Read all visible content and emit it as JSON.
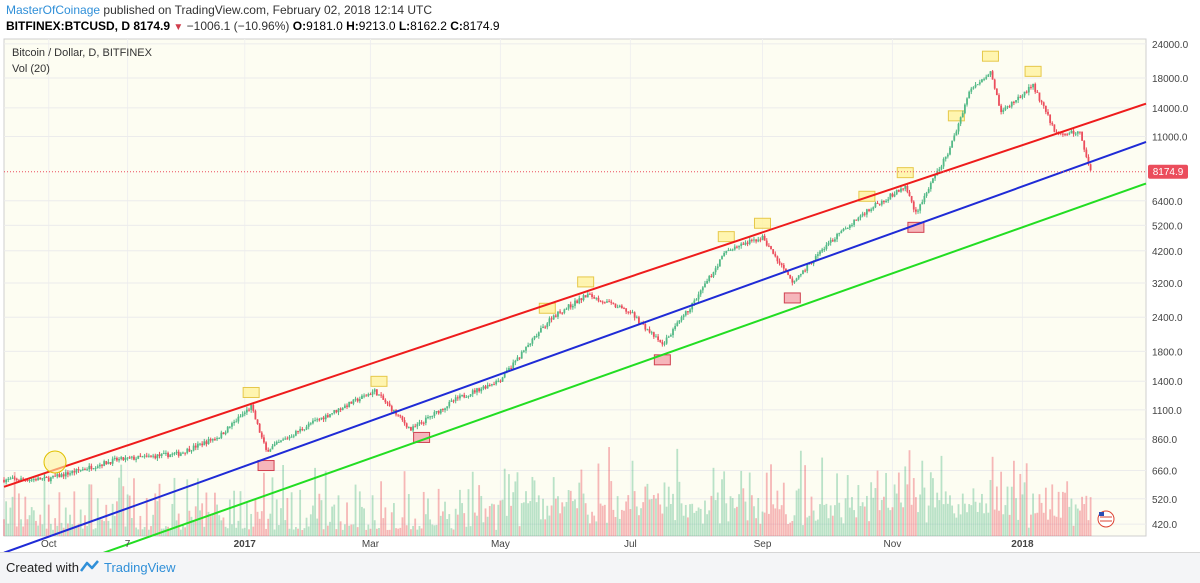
{
  "header": {
    "author": "MasterOfCoinage",
    "published_text": "published on TradingView.com, February 02, 2018 12:14 UTC",
    "symbol": "BITFINEX:BTCUSD, D",
    "last": "8174.9",
    "change": "−1006.1 (−10.96%)",
    "o_label": "O:",
    "o_value": "9181.0",
    "h_label": "H:",
    "h_value": "9213.0",
    "l_label": "L:",
    "l_value": "8162.2",
    "c_label": "C:",
    "c_value": "8174.9"
  },
  "legend": {
    "title": "Bitcoin / Dollar, D, BITFINEX",
    "volume": "Vol (20)"
  },
  "footer": {
    "created_with": "Created with",
    "brand": "TradingView"
  },
  "colors": {
    "up": "#53b987",
    "down": "#eb4d5c",
    "upper_channel": "#ee1c1c",
    "mid_channel": "#1f2bd6",
    "lower_channel": "#22dd22",
    "last_price_tag": "#eb4d5c",
    "highlight_top": "#fff29e",
    "highlight_bottom": "#f4a4ac",
    "background": "#fdfdf2"
  },
  "chart_data": {
    "type": "candlestick",
    "y_scale": "log",
    "ylim": [
      380,
      25000
    ],
    "y_ticks": [
      "420.0",
      "520.0",
      "660.0",
      "860.0",
      "1100.0",
      "1400.0",
      "1800.0",
      "2400.0",
      "3200.0",
      "4200.0",
      "5200.0",
      "6400.0",
      "8174.9",
      "11000.0",
      "14000.0",
      "18000.0",
      "24000.0"
    ],
    "x_ticks": [
      "Oct",
      "7",
      "2017",
      "Mar",
      "May",
      "Jul",
      "Sep",
      "Nov",
      "2018"
    ],
    "x_range": [
      "2016-09-10",
      "2018-02-28"
    ],
    "last_price": 8174.9,
    "price_path": [
      {
        "date": "2016-09-10",
        "close": 610
      },
      {
        "date": "2016-10-01",
        "close": 615
      },
      {
        "date": "2016-11-01",
        "close": 720
      },
      {
        "date": "2016-12-01",
        "close": 760
      },
      {
        "date": "2016-12-20",
        "close": 880
      },
      {
        "date": "2017-01-04",
        "close": 1130
      },
      {
        "date": "2017-01-11",
        "close": 780
      },
      {
        "date": "2017-02-01",
        "close": 980
      },
      {
        "date": "2017-03-03",
        "close": 1290
      },
      {
        "date": "2017-03-20",
        "close": 930
      },
      {
        "date": "2017-04-10",
        "close": 1200
      },
      {
        "date": "2017-05-01",
        "close": 1420
      },
      {
        "date": "2017-05-25",
        "close": 2400
      },
      {
        "date": "2017-06-11",
        "close": 2900
      },
      {
        "date": "2017-07-01",
        "close": 2500
      },
      {
        "date": "2017-07-16",
        "close": 1900
      },
      {
        "date": "2017-08-01",
        "close": 2800
      },
      {
        "date": "2017-08-15",
        "close": 4200
      },
      {
        "date": "2017-09-01",
        "close": 4700
      },
      {
        "date": "2017-09-15",
        "close": 3200
      },
      {
        "date": "2017-10-01",
        "close": 4400
      },
      {
        "date": "2017-10-20",
        "close": 5900
      },
      {
        "date": "2017-11-07",
        "close": 7200
      },
      {
        "date": "2017-11-12",
        "close": 5800
      },
      {
        "date": "2017-11-28",
        "close": 9900
      },
      {
        "date": "2017-12-07",
        "close": 16000
      },
      {
        "date": "2017-12-17",
        "close": 19200
      },
      {
        "date": "2017-12-22",
        "close": 13500
      },
      {
        "date": "2018-01-06",
        "close": 16900
      },
      {
        "date": "2018-01-17",
        "close": 11200
      },
      {
        "date": "2018-01-28",
        "close": 11400
      },
      {
        "date": "2018-02-02",
        "close": 8174.9
      }
    ],
    "channels": [
      {
        "name": "upper",
        "start": {
          "date": "2016-09-10",
          "price": 575
        },
        "end": {
          "date": "2018-02-28",
          "price": 14500
        }
      },
      {
        "name": "middle",
        "start": {
          "date": "2016-09-10",
          "price": 330
        },
        "end": {
          "date": "2018-02-28",
          "price": 10500
        }
      },
      {
        "name": "lower",
        "start": {
          "date": "2016-09-10",
          "price": 245
        },
        "end": {
          "date": "2018-02-28",
          "price": 7400
        }
      }
    ],
    "highlights_top": [
      "2017-01-04",
      "2017-03-05",
      "2017-05-23",
      "2017-06-10",
      "2017-08-15",
      "2017-09-01",
      "2017-10-20",
      "2017-11-07",
      "2017-12-01",
      "2017-12-17",
      "2018-01-06"
    ],
    "highlights_bottom": [
      "2017-01-11",
      "2017-03-25",
      "2017-07-16",
      "2017-09-15",
      "2017-11-12"
    ]
  }
}
